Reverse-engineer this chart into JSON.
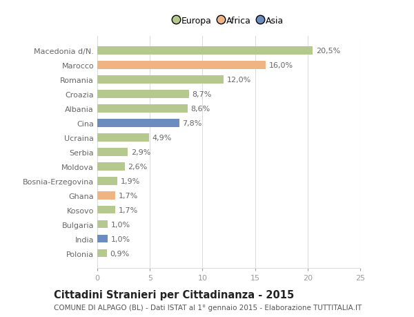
{
  "categories": [
    "Macedonia d/N.",
    "Marocco",
    "Romania",
    "Croazia",
    "Albania",
    "Cina",
    "Ucraina",
    "Serbia",
    "Moldova",
    "Bosnia-Erzegovina",
    "Ghana",
    "Kosovo",
    "Bulgaria",
    "India",
    "Polonia"
  ],
  "values": [
    20.5,
    16.0,
    12.0,
    8.7,
    8.6,
    7.8,
    4.9,
    2.9,
    2.6,
    1.9,
    1.7,
    1.7,
    1.0,
    1.0,
    0.9
  ],
  "labels": [
    "20,5%",
    "16,0%",
    "12,0%",
    "8,7%",
    "8,6%",
    "7,8%",
    "4,9%",
    "2,9%",
    "2,6%",
    "1,9%",
    "1,7%",
    "1,7%",
    "1,0%",
    "1,0%",
    "0,9%"
  ],
  "continent": [
    "Europa",
    "Africa",
    "Europa",
    "Europa",
    "Europa",
    "Asia",
    "Europa",
    "Europa",
    "Europa",
    "Europa",
    "Africa",
    "Europa",
    "Europa",
    "Asia",
    "Europa"
  ],
  "colors": {
    "Europa": "#b5c98e",
    "Africa": "#f0b482",
    "Asia": "#6b8cbf"
  },
  "legend_labels": [
    "Europa",
    "Africa",
    "Asia"
  ],
  "legend_colors": [
    "#b5c98e",
    "#f0b482",
    "#6b8cbf"
  ],
  "xlim": [
    0,
    25
  ],
  "xticks": [
    0,
    5,
    10,
    15,
    20,
    25
  ],
  "title": "Cittadini Stranieri per Cittadinanza - 2015",
  "subtitle": "COMUNE DI ALPAGO (BL) - Dati ISTAT al 1° gennaio 2015 - Elaborazione TUTTITALIA.IT",
  "bg_color": "#ffffff",
  "grid_color": "#dddddd",
  "bar_height": 0.55,
  "label_fontsize": 8.0,
  "tick_fontsize": 8.0,
  "title_fontsize": 10.5,
  "subtitle_fontsize": 7.5
}
